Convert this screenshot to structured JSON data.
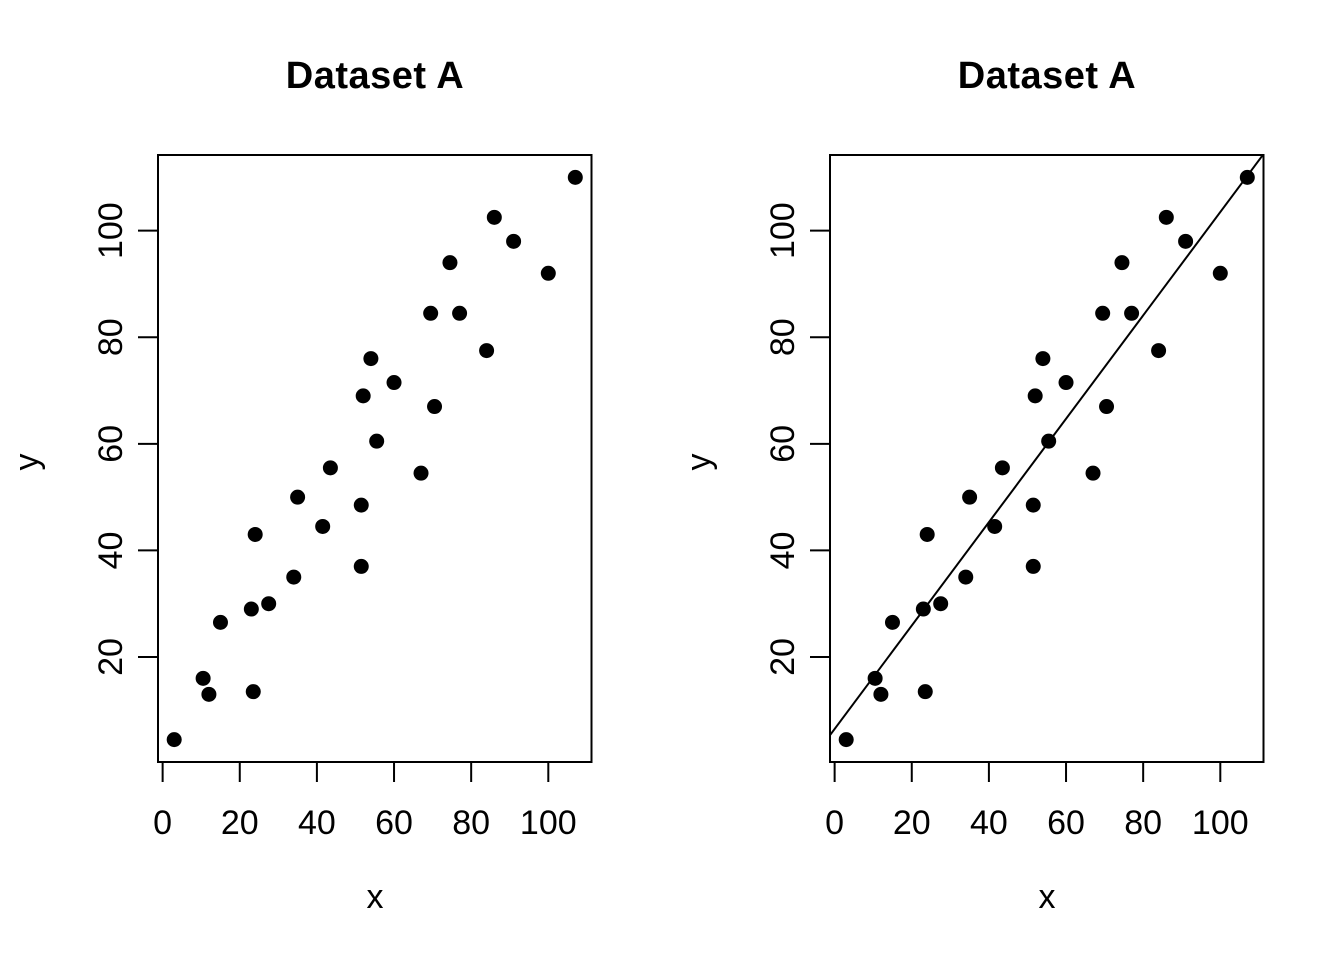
{
  "style": {
    "background": "#ffffff",
    "point_color": "#000000",
    "axis_color": "#000000",
    "fit_line_color": "#000000"
  },
  "chart_data": [
    {
      "type": "scatter",
      "title": "Dataset A",
      "xlabel": "x",
      "ylabel": "y",
      "xlim": [
        -1.2,
        111.2
      ],
      "ylim": [
        0.3,
        114.2
      ],
      "x_ticks": [
        0,
        20,
        40,
        60,
        80,
        100
      ],
      "y_ticks": [
        20,
        40,
        60,
        80,
        100
      ],
      "grid": false,
      "legend": null,
      "points": [
        [
          3,
          4.5
        ],
        [
          10.5,
          16
        ],
        [
          12,
          13
        ],
        [
          15,
          26.5
        ],
        [
          23,
          29
        ],
        [
          23.5,
          13.5
        ],
        [
          24,
          43
        ],
        [
          27.5,
          30
        ],
        [
          34,
          35
        ],
        [
          35,
          50
        ],
        [
          41.5,
          44.5
        ],
        [
          43.5,
          55.5
        ],
        [
          51.5,
          48.5
        ],
        [
          51.5,
          37
        ],
        [
          52,
          69
        ],
        [
          54,
          76
        ],
        [
          55.5,
          60.5
        ],
        [
          60,
          71.5
        ],
        [
          67,
          54.5
        ],
        [
          69.5,
          84.5
        ],
        [
          70.5,
          67
        ],
        [
          74.5,
          94
        ],
        [
          77,
          84.5
        ],
        [
          84,
          77.5
        ],
        [
          86,
          102.5
        ],
        [
          91,
          98
        ],
        [
          100,
          92
        ],
        [
          107,
          110
        ]
      ],
      "fit_line": null
    },
    {
      "type": "scatter",
      "title": "Dataset A",
      "xlabel": "x",
      "ylabel": "y",
      "xlim": [
        -1.2,
        111.2
      ],
      "ylim": [
        0.3,
        114.2
      ],
      "x_ticks": [
        0,
        20,
        40,
        60,
        80,
        100
      ],
      "y_ticks": [
        20,
        40,
        60,
        80,
        100
      ],
      "grid": false,
      "legend": null,
      "points": [
        [
          3,
          4.5
        ],
        [
          10.5,
          16
        ],
        [
          12,
          13
        ],
        [
          15,
          26.5
        ],
        [
          23,
          29
        ],
        [
          23.5,
          13.5
        ],
        [
          24,
          43
        ],
        [
          27.5,
          30
        ],
        [
          34,
          35
        ],
        [
          35,
          50
        ],
        [
          41.5,
          44.5
        ],
        [
          43.5,
          55.5
        ],
        [
          51.5,
          48.5
        ],
        [
          51.5,
          37
        ],
        [
          52,
          69
        ],
        [
          54,
          76
        ],
        [
          55.5,
          60.5
        ],
        [
          60,
          71.5
        ],
        [
          67,
          54.5
        ],
        [
          69.5,
          84.5
        ],
        [
          70.5,
          67
        ],
        [
          74.5,
          94
        ],
        [
          77,
          84.5
        ],
        [
          84,
          77.5
        ],
        [
          86,
          102.5
        ],
        [
          91,
          98
        ],
        [
          100,
          92
        ],
        [
          107,
          110
        ]
      ],
      "fit_line": {
        "slope": 0.97,
        "intercept": 6.5
      }
    }
  ]
}
